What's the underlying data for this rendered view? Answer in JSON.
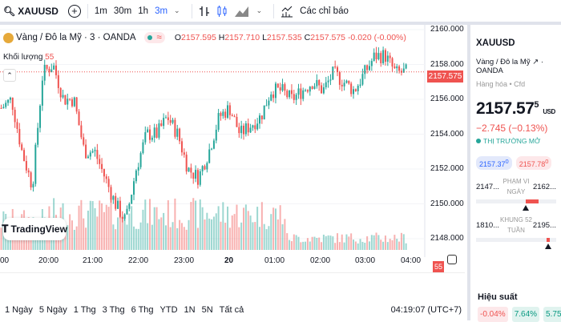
{
  "toolbar": {
    "symbol": "XAUUSD",
    "timeframes": [
      "1m",
      "30m",
      "1h",
      "3m"
    ],
    "active_timeframe": "3m",
    "indicators_label": "Các chỉ báo"
  },
  "legend": {
    "title": "Vàng / Đô la Mỹ · 3 · OANDA",
    "o_label": "O",
    "o": "2157.595",
    "h_label": "H",
    "h": "2157.710",
    "l_label": "L",
    "l": "2157.535",
    "c_label": "C",
    "c": "2157.575",
    "change": "-0.020 (-0.00%)",
    "volume_label": "Khối lượng",
    "volume": "55"
  },
  "price_axis": {
    "labels": [
      "2160.000",
      "2158.000",
      "2156.000",
      "2154.000",
      "2152.000",
      "2150.000",
      "2148.000"
    ],
    "current": "2157.575",
    "volume_badge": "55"
  },
  "time_axis": [
    "00",
    "20:00",
    "21:00",
    "22:00",
    "23:00",
    "20",
    "01:00",
    "02:00",
    "03:00",
    "04:00"
  ],
  "logo": "TradingView",
  "ranges": [
    "1 Ngày",
    "5 Ngày",
    "1 Thg",
    "3 Thg",
    "6 Thg",
    "YTD",
    "1N",
    "5N",
    "Tất cả"
  ],
  "clock": "04:19:07 (UTC+7)",
  "panel": {
    "symbol": "XAUUSD",
    "name": "Vàng / Đô la Mỹ",
    "exchange": "· OANDA",
    "type": "Hàng hóa • Cfd",
    "price": "2157.57",
    "price_sup": "5",
    "currency": "USD",
    "change": "−2.745 (−0.13%)",
    "status": "THỊ TRƯỜNG MỞ",
    "bid": "2157.37",
    "bid_sup": "0",
    "ask": "2157.78",
    "ask_sup": "0",
    "day_range": {
      "low": "2147...",
      "label1": "PHẠM VI",
      "label2": "NGÀY",
      "high": "2162...",
      "fill_from": 0.62,
      "fill_to": 0.78,
      "marker": 0.62
    },
    "week52": {
      "low": "1810...",
      "label1": "KHUNG 52",
      "label2": "TUẦN",
      "high": "2195...",
      "fill_from": 0.88,
      "fill_to": 0.92,
      "marker": 0.9
    },
    "perf_label": "Hiệu suất",
    "perf": [
      "-0.04%",
      "7.64%",
      "5.75%"
    ]
  },
  "colors": {
    "up": "#26a69a",
    "down": "#ef5350",
    "accent": "#2962ff"
  },
  "chart_data": {
    "type": "candlestick",
    "interval": "3m",
    "price_range": [
      2147.5,
      2160.2
    ],
    "close_path": [
      2155.5,
      2156,
      2153,
      2151,
      2157.5,
      2158,
      2156,
      2156,
      2153,
      2153,
      2151.5,
      2150,
      2149,
      2152,
      2154,
      2154,
      2155,
      2154,
      2152,
      2151.5,
      2153,
      2155,
      2155.5,
      2154,
      2154.5,
      2155,
      2156.5,
      2156.5,
      2156,
      2156.5,
      2157,
      2156.5,
      2157.5,
      2157,
      2156.5,
      2157.5,
      2158.5,
      2158.5,
      2157.5,
      2157.575
    ]
  }
}
